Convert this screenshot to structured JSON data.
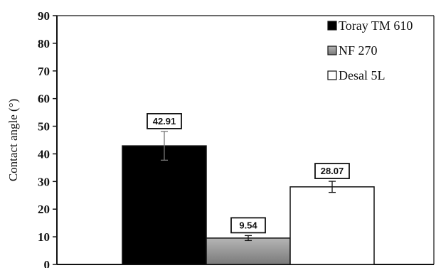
{
  "chart_data": {
    "type": "bar",
    "title": "",
    "xlabel": "",
    "ylabel": "Contact angle (°)",
    "ylim": [
      0,
      90
    ],
    "yticks": [
      0,
      10,
      20,
      30,
      40,
      50,
      60,
      70,
      80,
      90
    ],
    "grid": false,
    "legend_position": "top-right",
    "series": [
      {
        "name": "Toray TM 610",
        "value": 42.91,
        "label": "42.91",
        "error": 5.2,
        "fill": "#000000",
        "fill_style": "solid"
      },
      {
        "name": "NF 270",
        "value": 9.54,
        "label": "9.54",
        "error": 0.9,
        "fill": "#8a8a8a",
        "fill_style": "gradient"
      },
      {
        "name": "Desal 5L",
        "value": 28.07,
        "label": "28.07",
        "error": 2.0,
        "fill": "#ffffff",
        "fill_style": "solid"
      }
    ]
  }
}
